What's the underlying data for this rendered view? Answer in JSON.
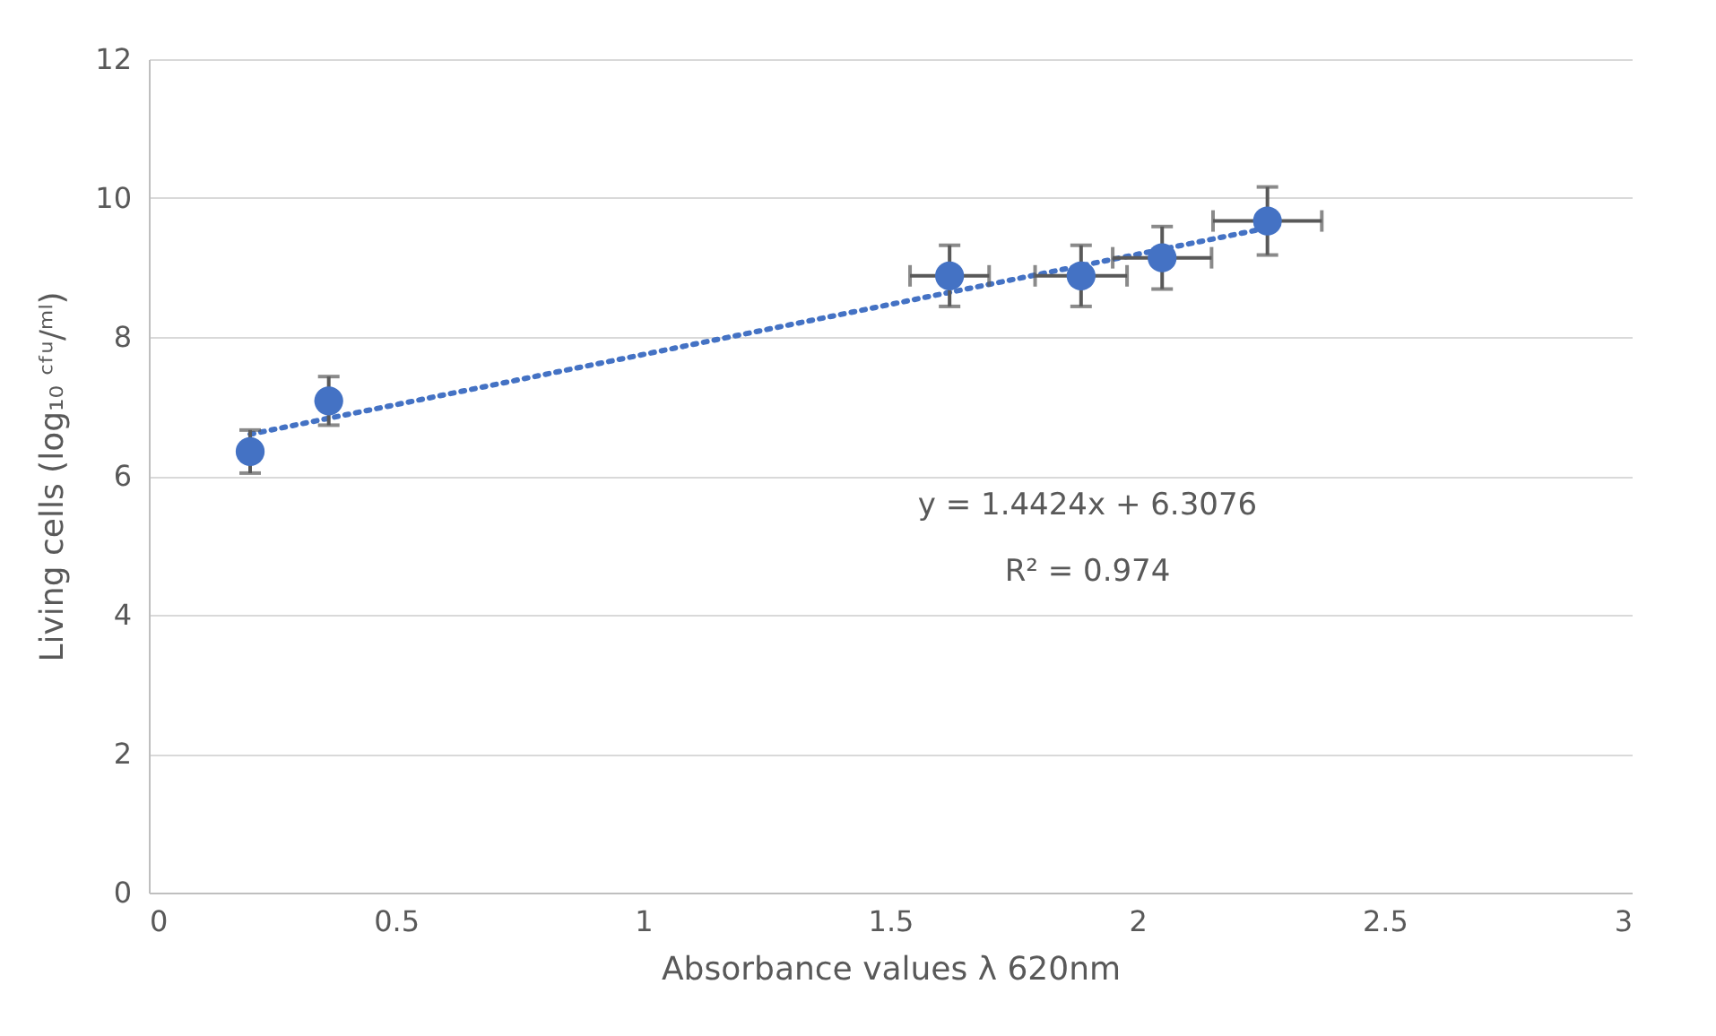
{
  "chart_data": {
    "type": "scatter",
    "xlabel": "Absorbance values λ 620nm",
    "ylabel": "Living cells (log₁₀ ᶜᶠᵘ/ᵐˡ)",
    "xlim": [
      0,
      3
    ],
    "xticks": [
      0,
      0.5,
      1,
      1.5,
      2,
      2.5,
      3
    ],
    "ylim": [
      0,
      12
    ],
    "yticks": [
      0,
      2,
      4,
      6,
      8,
      10,
      12
    ],
    "grid": "y",
    "marker": "circle",
    "series": [
      {
        "color": "#4472c4",
        "x": [
          0.205,
          0.364,
          1.62,
          1.886,
          2.05,
          2.263
        ],
        "values": [
          6.35,
          7.08,
          8.88,
          8.88,
          9.14,
          9.67
        ],
        "errors": [
          0.31,
          0.35,
          0.44,
          0.44,
          0.45,
          0.49
        ],
        "xerrors": [
          null,
          null,
          0.08,
          0.093,
          0.1,
          0.11
        ]
      },
      {
        "type": "line",
        "color": "#4472c4",
        "line_style": "dotted",
        "marker": "none",
        "x": [
          0.205,
          2.263
        ],
        "values": [
          6.6,
          9.57
        ]
      }
    ],
    "annotations": [
      "y = 1.4424x + 6.3076",
      "R² = 0.974"
    ]
  }
}
